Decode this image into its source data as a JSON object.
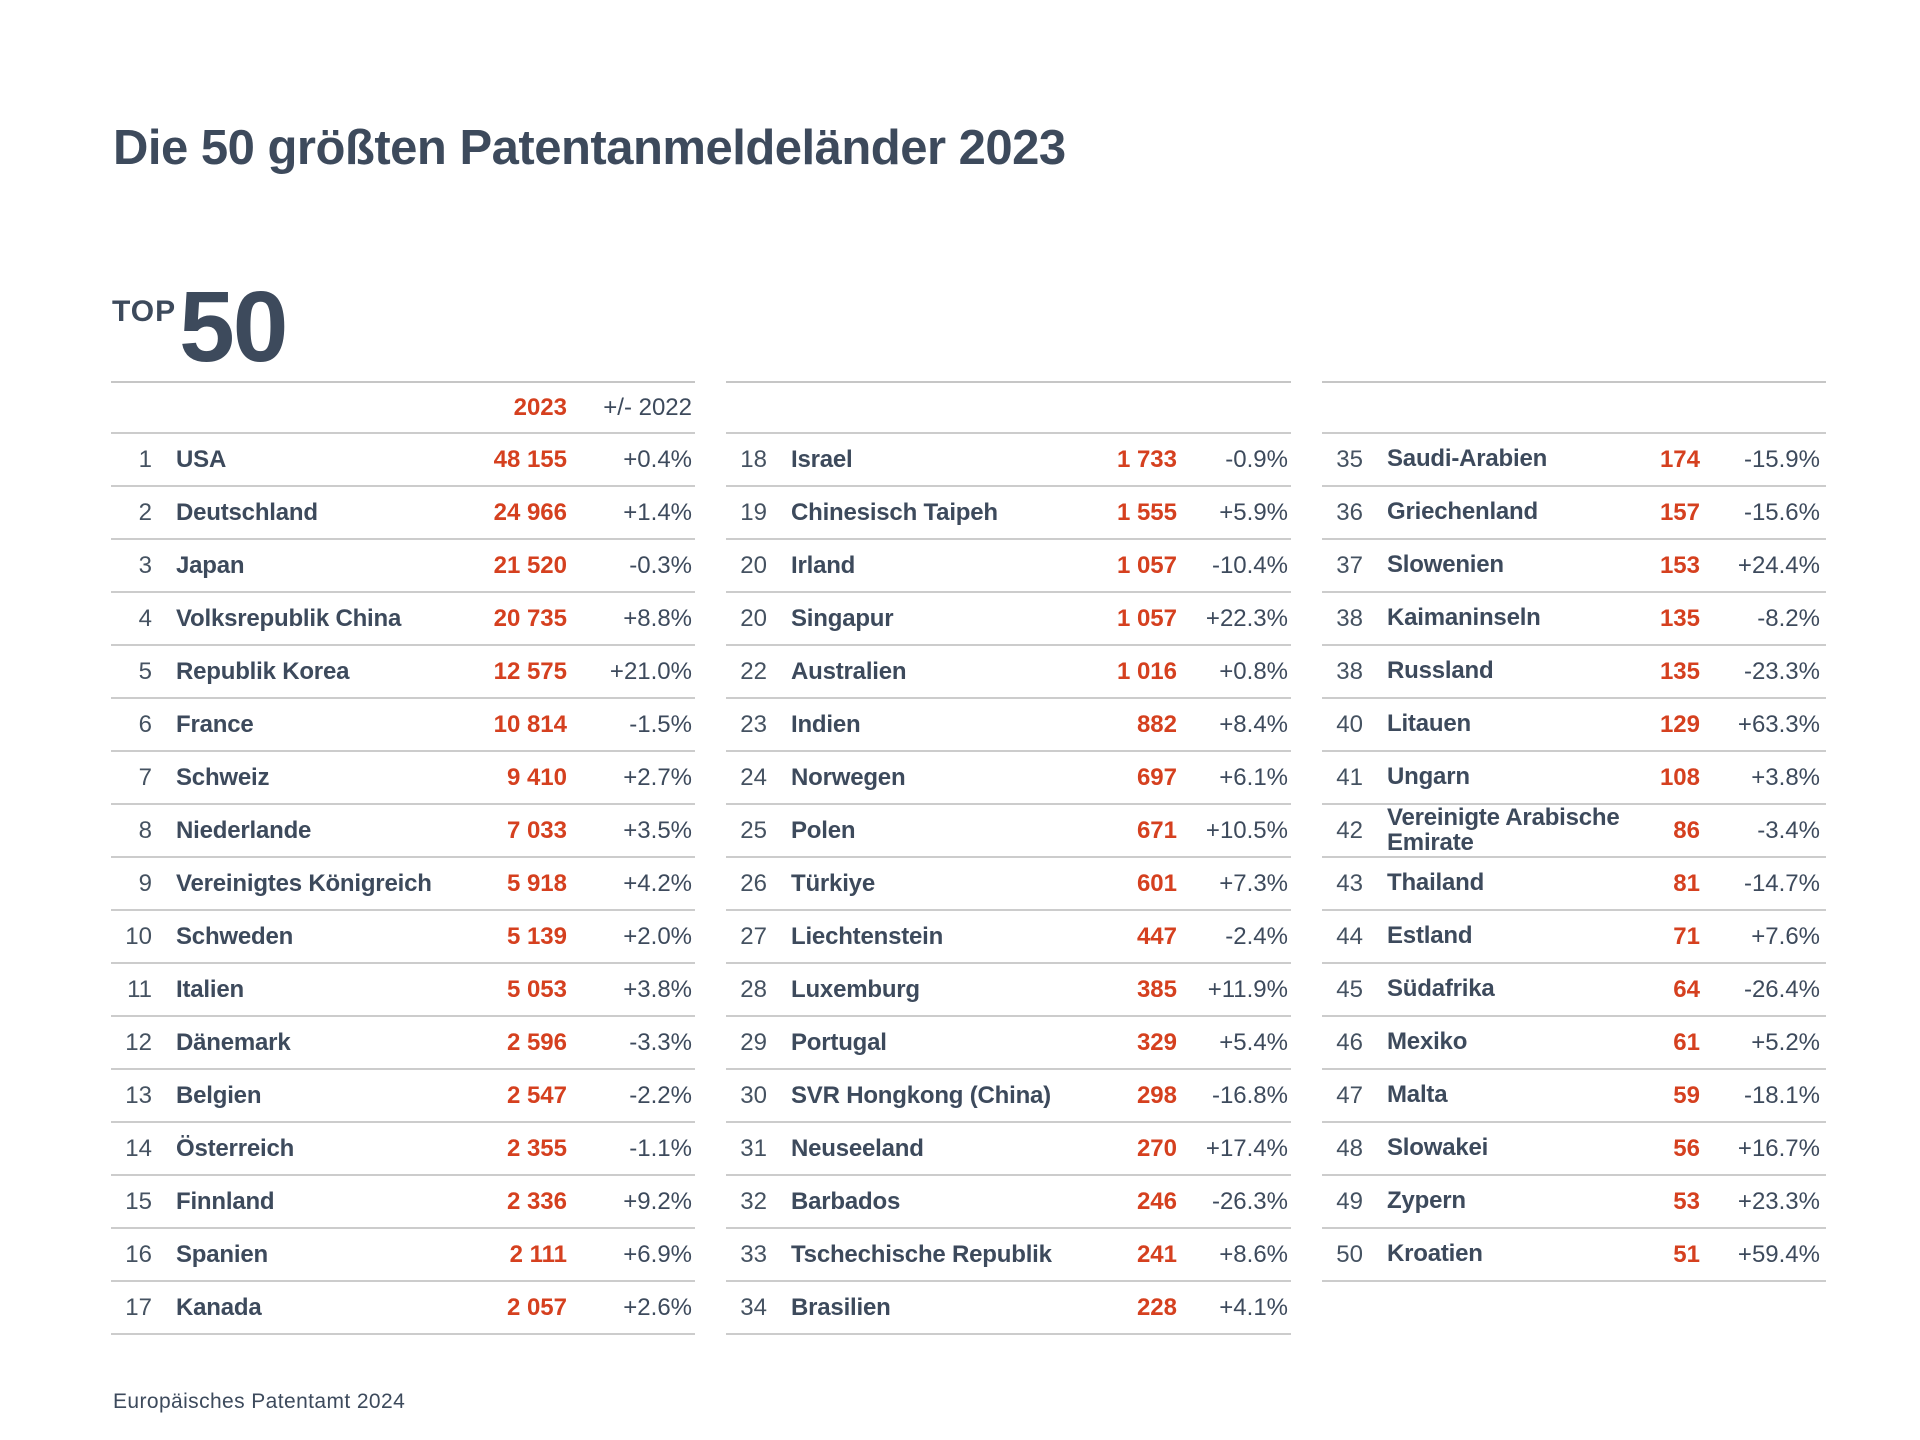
{
  "title": "Die 50 größten Patentanmeldeländer 2023",
  "badge": {
    "top": "TOP",
    "number": "50"
  },
  "header": {
    "year": "2023",
    "change": "+/- 2022"
  },
  "source": "Europäisches Patentamt 2024",
  "colors": {
    "accent_red": "#d5401f",
    "slate_text": "#3d4a5c",
    "divider": "#cccccc"
  },
  "chart_data": {
    "type": "table",
    "title": "Die 50 größten Patentanmeldeländer 2023",
    "columns": [
      "Rang",
      "Land",
      "2023",
      "+/- 2022"
    ],
    "layout": {
      "group_sizes": [
        17,
        17,
        16
      ],
      "legend_position": "none",
      "grid": "row-dividers"
    },
    "rows": [
      [
        1,
        "USA",
        "48 155",
        "+0.4%"
      ],
      [
        2,
        "Deutschland",
        "24 966",
        "+1.4%"
      ],
      [
        3,
        "Japan",
        "21 520",
        "-0.3%"
      ],
      [
        4,
        "Volksrepublik China",
        "20 735",
        "+8.8%"
      ],
      [
        5,
        "Republik Korea",
        "12 575",
        "+21.0%"
      ],
      [
        6,
        "France",
        "10 814",
        "-1.5%"
      ],
      [
        7,
        "Schweiz",
        "9 410",
        "+2.7%"
      ],
      [
        8,
        "Niederlande",
        "7 033",
        "+3.5%"
      ],
      [
        9,
        "Vereinigtes Königreich",
        "5 918",
        "+4.2%"
      ],
      [
        10,
        "Schweden",
        "5 139",
        "+2.0%"
      ],
      [
        11,
        "Italien",
        "5 053",
        "+3.8%"
      ],
      [
        12,
        "Dänemark",
        "2 596",
        "-3.3%"
      ],
      [
        13,
        "Belgien",
        "2 547",
        "-2.2%"
      ],
      [
        14,
        "Österreich",
        "2 355",
        "-1.1%"
      ],
      [
        15,
        "Finnland",
        "2 336",
        "+9.2%"
      ],
      [
        16,
        "Spanien",
        "2 111",
        "+6.9%"
      ],
      [
        17,
        "Kanada",
        "2 057",
        "+2.6%"
      ],
      [
        18,
        "Israel",
        "1 733",
        "-0.9%"
      ],
      [
        19,
        "Chinesisch Taipeh",
        "1 555",
        "+5.9%"
      ],
      [
        20,
        "Irland",
        "1 057",
        "-10.4%"
      ],
      [
        20,
        "Singapur",
        "1 057",
        "+22.3%"
      ],
      [
        22,
        "Australien",
        "1 016",
        "+0.8%"
      ],
      [
        23,
        "Indien",
        "882",
        "+8.4%"
      ],
      [
        24,
        "Norwegen",
        "697",
        "+6.1%"
      ],
      [
        25,
        "Polen",
        "671",
        "+10.5%"
      ],
      [
        26,
        "Türkiye",
        "601",
        "+7.3%"
      ],
      [
        27,
        "Liechtenstein",
        "447",
        "-2.4%"
      ],
      [
        28,
        "Luxemburg",
        "385",
        "+11.9%"
      ],
      [
        29,
        "Portugal",
        "329",
        "+5.4%"
      ],
      [
        30,
        "SVR Hongkong (China)",
        "298",
        "-16.8%"
      ],
      [
        31,
        "Neuseeland",
        "270",
        "+17.4%"
      ],
      [
        32,
        "Barbados",
        "246",
        "-26.3%"
      ],
      [
        33,
        "Tschechische Republik",
        "241",
        "+8.6%"
      ],
      [
        34,
        "Brasilien",
        "228",
        "+4.1%"
      ],
      [
        35,
        "Saudi-Arabien",
        "174",
        "-15.9%"
      ],
      [
        36,
        "Griechenland",
        "157",
        "-15.6%"
      ],
      [
        37,
        "Slowenien",
        "153",
        "+24.4%"
      ],
      [
        38,
        "Kaimaninseln",
        "135",
        "-8.2%"
      ],
      [
        38,
        "Russland",
        "135",
        "-23.3%"
      ],
      [
        40,
        "Litauen",
        "129",
        "+63.3%"
      ],
      [
        41,
        "Ungarn",
        "108",
        "+3.8%"
      ],
      [
        42,
        "Vereinigte Arabische Emirate",
        "86",
        "-3.4%"
      ],
      [
        43,
        "Thailand",
        "81",
        "-14.7%"
      ],
      [
        44,
        "Estland",
        "71",
        "+7.6%"
      ],
      [
        45,
        "Südafrika",
        "64",
        "-26.4%"
      ],
      [
        46,
        "Mexiko",
        "61",
        "+5.2%"
      ],
      [
        47,
        "Malta",
        "59",
        "-18.1%"
      ],
      [
        48,
        "Slowakei",
        "56",
        "+16.7%"
      ],
      [
        49,
        "Zypern",
        "53",
        "+23.3%"
      ],
      [
        50,
        "Kroatien",
        "51",
        "+59.4%"
      ]
    ]
  }
}
